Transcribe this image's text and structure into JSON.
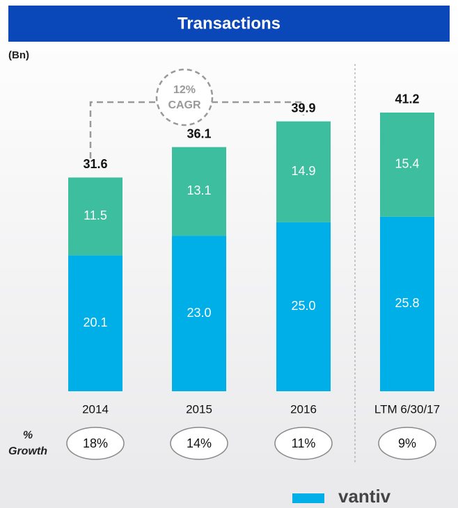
{
  "chart_data": {
    "type": "stacked_bar",
    "title": "Transactions",
    "unit_label": "(Bn)",
    "categories": [
      "2014",
      "2015",
      "2016",
      "LTM 6/30/17"
    ],
    "series": [
      {
        "name": "base",
        "color": "#00aee8",
        "values": [
          20.1,
          23.0,
          25.0,
          25.8
        ],
        "value_labels": [
          "20.1",
          "23.0",
          "25.0",
          "25.8"
        ]
      },
      {
        "name": "top",
        "color": "#3dbf9f",
        "values": [
          11.5,
          13.1,
          14.9,
          15.4
        ]
      }
    ],
    "totals": [
      31.6,
      36.1,
      39.9,
      41.2
    ],
    "ylim": [
      0,
      45
    ],
    "annotation": [
      "12%",
      "CAGR"
    ],
    "growth_title": [
      "%",
      "Growth"
    ],
    "growth_labels": [
      "18%",
      "14%",
      "11%",
      "9%"
    ],
    "logo": "vantiv"
  }
}
